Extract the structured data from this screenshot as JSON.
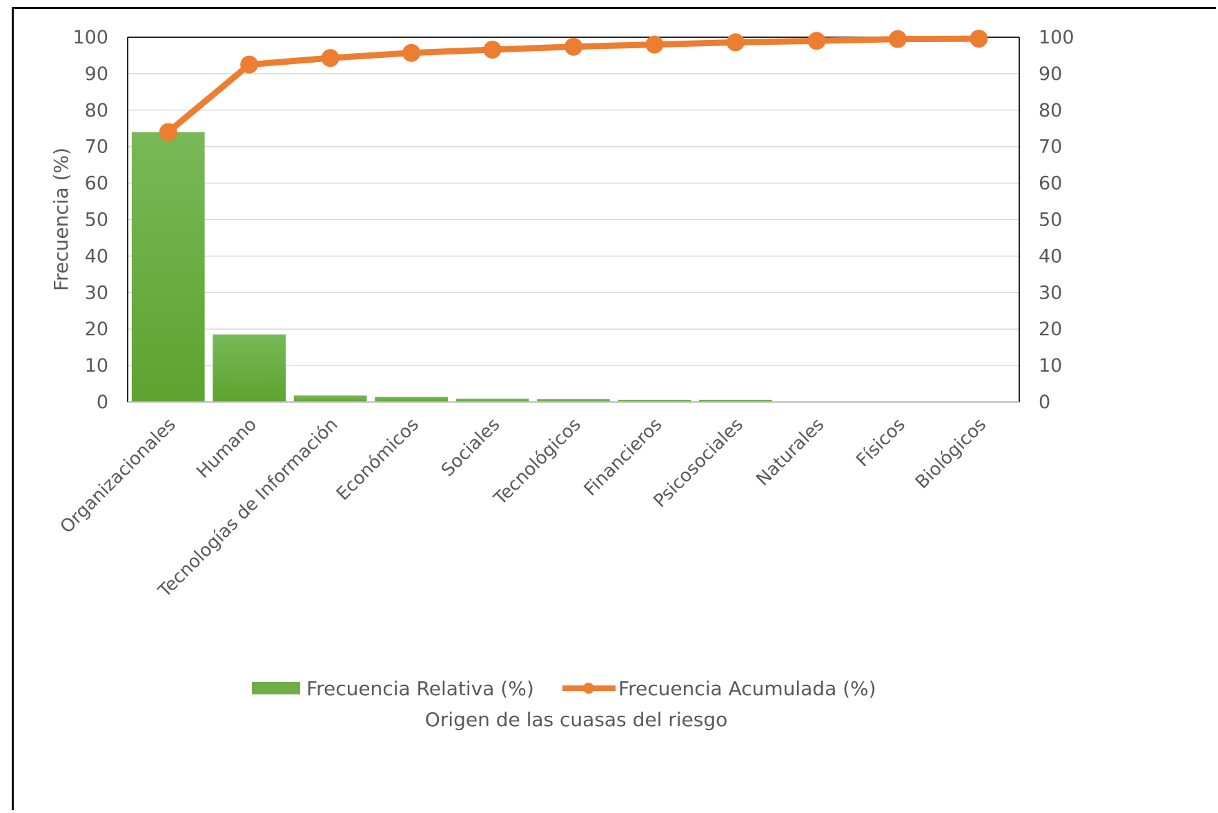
{
  "chart_data": {
    "type": "bar",
    "categories": [
      "Organizacionales",
      "Humano",
      "Tecnologías de Información",
      "Económicos",
      "Sociales",
      "Tecnológicos",
      "Financieros",
      "Psicosociales",
      "Naturales",
      "Físicos",
      "Biológicos"
    ],
    "series": [
      {
        "name": "Frecuencia Relativa (%)",
        "type": "bar",
        "color": "#70ad47",
        "values": [
          74.0,
          18.5,
          1.8,
          1.4,
          0.9,
          0.8,
          0.6,
          0.6,
          0.1,
          0.1,
          0.1
        ]
      },
      {
        "name": "Frecuencia Acumulada (%)",
        "type": "line",
        "color": "#ed7d31",
        "values": [
          74.0,
          92.5,
          94.3,
          95.7,
          96.6,
          97.4,
          98.0,
          98.6,
          99.0,
          99.5,
          99.6
        ]
      }
    ],
    "title": "",
    "xlabel": "Origen de las cuasas del riesgo",
    "ylabel": "Frecuencia (%)",
    "ylim": [
      0,
      100
    ],
    "y2lim": [
      0,
      100
    ],
    "yticks": [
      "0",
      "10",
      "20",
      "30",
      "40",
      "50",
      "60",
      "70",
      "80",
      "90",
      "100"
    ],
    "grid": true,
    "legend_position": "bottom"
  }
}
